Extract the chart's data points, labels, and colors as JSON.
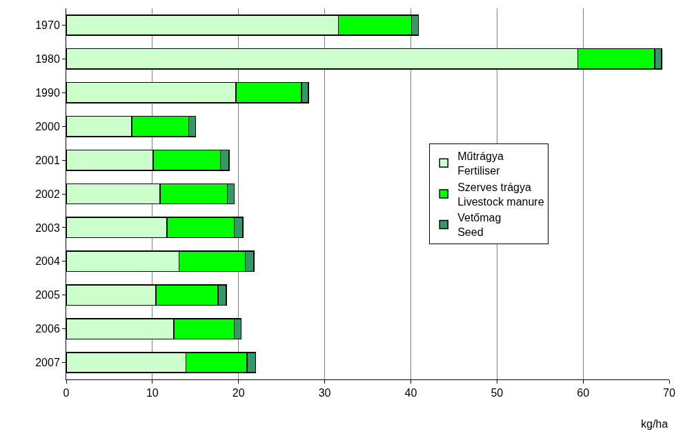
{
  "chart_data": {
    "type": "bar",
    "orientation": "horizontal",
    "stacked": true,
    "xlabel": "kg/ha",
    "categories": [
      "1970",
      "1980",
      "1990",
      "2000",
      "2001",
      "2002",
      "2003",
      "2004",
      "2005",
      "2006",
      "2007"
    ],
    "series": [
      {
        "name": "Műtrágya\nFertiliser",
        "color": "#ccffcc",
        "values": [
          31.6,
          59.4,
          19.7,
          7.6,
          10.1,
          10.9,
          11.7,
          13.1,
          10.4,
          12.5,
          13.9
        ]
      },
      {
        "name": "Szerves trágya\nLivestock manure",
        "color": "#00ff00",
        "values": [
          8.5,
          8.9,
          7.6,
          6.6,
          7.8,
          7.8,
          7.8,
          7.7,
          7.2,
          7.0,
          7.1
        ]
      },
      {
        "name": "Vetőmag\nSeed",
        "color": "#339966",
        "values": [
          0.8,
          0.8,
          0.8,
          0.8,
          1.0,
          0.8,
          1.0,
          1.0,
          1.0,
          0.8,
          1.0
        ]
      }
    ],
    "xlim": [
      0,
      70
    ],
    "xticks": [
      0,
      10,
      20,
      30,
      40,
      50,
      60,
      70
    ],
    "grid": "x",
    "legend": "right"
  }
}
